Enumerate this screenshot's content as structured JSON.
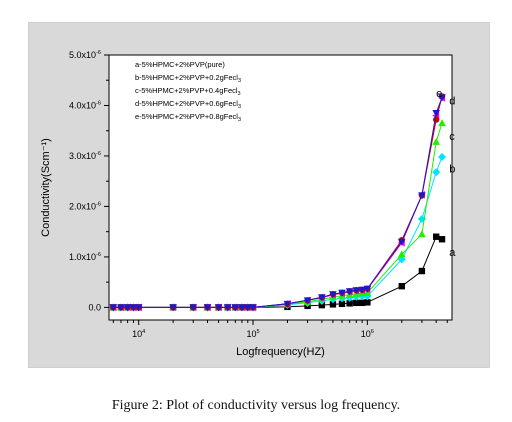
{
  "caption": "Figure 2: Plot of conductivity versus log frequency.",
  "chart_data": {
    "type": "scatter",
    "title": "",
    "xlabel": "Logfrequency(HZ)",
    "ylabel": "Conductivity(Scm⁻¹)",
    "x_scale": "log",
    "xlim": [
      5500,
      5500000
    ],
    "ylim": [
      -2.5e-07,
      5e-06
    ],
    "x_ticks": [
      {
        "value": 10000,
        "label_base": "10",
        "label_exp": "4"
      },
      {
        "value": 100000,
        "label_base": "10",
        "label_exp": "5"
      },
      {
        "value": 1000000,
        "label_base": "10",
        "label_exp": "6"
      }
    ],
    "y_ticks": [
      {
        "value": 0,
        "label_base": "0.0",
        "label_exp": ""
      },
      {
        "value": 1e-06,
        "label_base": "1.0x10",
        "label_exp": "-6"
      },
      {
        "value": 2e-06,
        "label_base": "2.0x10",
        "label_exp": "-6"
      },
      {
        "value": 3e-06,
        "label_base": "3.0x10",
        "label_exp": "-6"
      },
      {
        "value": 4e-06,
        "label_base": "4.0x10",
        "label_exp": "-6"
      },
      {
        "value": 5e-06,
        "label_base": "5.0x10",
        "label_exp": "-6"
      }
    ],
    "grid": false,
    "legend_position": "top-left",
    "legend": [
      {
        "text": "a-5%HPMC+2%PVP(pure)",
        "sub": ""
      },
      {
        "text": "b-5%HPMC+2%PVP+0.2gFecl",
        "sub": "3"
      },
      {
        "text": "c-5%HPMC+2%PVP+0.4gFecl",
        "sub": "3"
      },
      {
        "text": "d-5%HPMC+2%PVP+0.6gFecl",
        "sub": "3"
      },
      {
        "text": "e-5%HPMC+2%PVP+0.8gFecl",
        "sub": "3"
      }
    ],
    "x": [
      6000,
      7000,
      8000,
      9000,
      10000,
      20000,
      30000,
      40000,
      50000,
      60000,
      70000,
      80000,
      90000,
      100000,
      200000,
      300000,
      400000,
      500000,
      600000,
      700000,
      800000,
      900000,
      1000000,
      2000000,
      3000000,
      4000000,
      4500000
    ],
    "series": [
      {
        "label": "a",
        "color": "#000000",
        "marker": "square",
        "values": [
          0,
          0,
          0,
          0,
          0,
          0,
          0,
          0,
          0,
          0,
          0,
          0,
          0,
          0,
          1e-08,
          3e-08,
          4.5e-08,
          6e-08,
          7e-08,
          8e-08,
          9e-08,
          9e-08,
          1e-07,
          4.2e-07,
          7.2e-07,
          1.4e-06,
          1.35e-06
        ]
      },
      {
        "label": "b",
        "color": "#00e5ff",
        "marker": "diamond",
        "values": [
          0,
          0,
          0,
          0,
          0,
          0,
          0,
          0,
          0,
          0,
          0,
          0,
          0,
          0,
          5e-08,
          9e-08,
          1.3e-07,
          1.6e-07,
          1.8e-07,
          1.9e-07,
          2.1e-07,
          2.2e-07,
          2.2e-07,
          9.5e-07,
          1.75e-06,
          2.68e-06,
          2.98e-06
        ]
      },
      {
        "label": "c",
        "color": "#22ee00",
        "marker": "triangle-up",
        "values": [
          0,
          0,
          0,
          0,
          0,
          0,
          0,
          0,
          0,
          0,
          0,
          0,
          0,
          0,
          6e-08,
          1.1e-07,
          1.6e-07,
          2e-07,
          2.3e-07,
          2.5e-07,
          2.7e-07,
          2.8e-07,
          2.9e-07,
          1.05e-06,
          1.45e-06,
          3.28e-06,
          3.65e-06
        ]
      },
      {
        "label": "d",
        "color": "#ff00ff",
        "marker": "triangle-left",
        "values": [
          0,
          0,
          0,
          0,
          0,
          0,
          0,
          0,
          0,
          0,
          0,
          0,
          0,
          0,
          7e-08,
          1.4e-07,
          1.9e-07,
          2.5e-07,
          2.8e-07,
          3.1e-07,
          3.3e-07,
          3.4e-07,
          3.6e-07,
          1.28e-06,
          2.23e-06,
          3.8e-06,
          4.15e-06
        ]
      },
      {
        "label": "e",
        "color": "#d50000",
        "marker": "circle",
        "values": [
          0,
          0,
          0,
          0,
          0,
          0,
          0,
          0,
          0,
          0,
          0,
          0,
          0,
          0,
          7e-08,
          1.4e-07,
          2e-07,
          2.6e-07,
          2.9e-07,
          3.2e-07,
          3.4e-07,
          3.5e-07,
          3.7e-07,
          1.33e-06,
          2.22e-06,
          3.72e-06,
          4.18e-06
        ]
      },
      {
        "label": "",
        "color": "#1a1acc",
        "marker": "triangle-down",
        "values": [
          0,
          0,
          0,
          0,
          0,
          0,
          0,
          0,
          0,
          0,
          0,
          0,
          0,
          0,
          7e-08,
          1.4e-07,
          2e-07,
          2.6e-07,
          2.9e-07,
          3.2e-07,
          3.4e-07,
          3.5e-07,
          3.7e-07,
          1.3e-06,
          2.22e-06,
          3.85e-06,
          4.16e-06
        ]
      }
    ],
    "point_labels": [
      {
        "text": "a",
        "x": 5200000,
        "y": 1.1e-06
      },
      {
        "text": "b",
        "x": 5200000,
        "y": 2.75e-06
      },
      {
        "text": "c",
        "x": 5200000,
        "y": 3.4e-06
      },
      {
        "text": "d",
        "x": 5200000,
        "y": 4.1e-06
      },
      {
        "text": "e",
        "x": 4000000,
        "y": 4.25e-06
      }
    ]
  }
}
